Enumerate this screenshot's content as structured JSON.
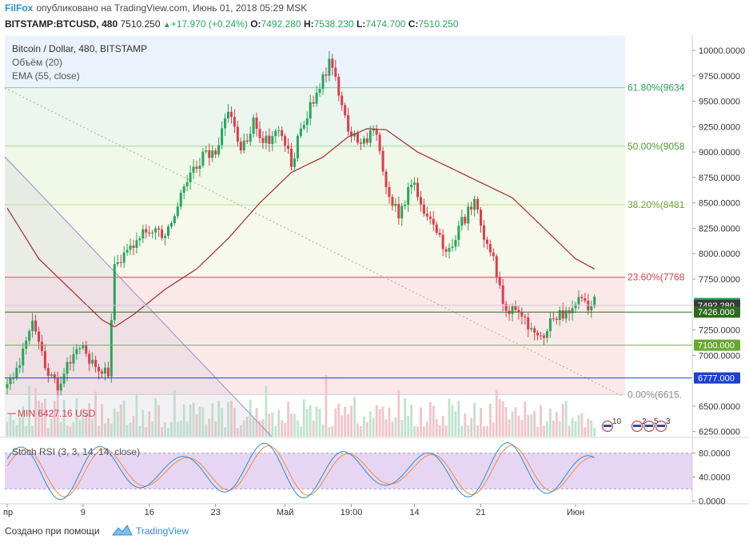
{
  "header": {
    "brand": "FilFox",
    "published": "опубликовано на TradingView.com, Июнь 01, 2018 05:29 MSK",
    "symbol": "BITSTAMP:BTCUSD, 480",
    "last": "7510.250",
    "change": "+17.970 (+0.24%)",
    "o_label": "O:",
    "o": "7492.280",
    "h_label": "H:",
    "h": "7538.230",
    "l_label": "L:",
    "l": "7474.700",
    "c_label": "C:",
    "c": "7510.250"
  },
  "legend": {
    "title": "Bitcoin / Dollar, 480, BITSTAMP",
    "volume": "Объём (20)",
    "ema": "EMA (55, close)",
    "rsi": "Stoch RSI (3, 3, 14, 14, close)"
  },
  "colors": {
    "up": "#26a65b",
    "down": "#e03b4a",
    "ema": "#a52a2a",
    "k_line": "#2b8ed8",
    "d_line": "#f08c3c",
    "fib_red": "#e03b4a",
    "fib_green": "#2ca05a",
    "blue_line": "#1f3fcf"
  },
  "chart_data": {
    "type": "candlestick",
    "ylim": [
      6200,
      10150
    ],
    "y_ticks": [
      "10000.0000",
      "9750.0000",
      "9500.0000",
      "9250.0000",
      "9000.0000",
      "8750.0000",
      "8500.0000",
      "8250.0000",
      "8000.0000",
      "7750.0000",
      "7250.0000",
      "7000.0000",
      "6500.0000",
      "6250.0000"
    ],
    "y_tick_values": [
      10000,
      9750,
      9500,
      9250,
      9000,
      8750,
      8500,
      8250,
      8000,
      7750,
      7250,
      7000,
      6500,
      6250
    ],
    "x_ticks": [
      "пр",
      "9",
      "16",
      "23",
      "Май",
      "19:00",
      "14",
      "21",
      "Июн"
    ],
    "x_tick_bars": [
      0,
      24,
      45,
      66,
      88,
      109,
      129,
      150,
      180
    ],
    "fib_levels": [
      {
        "label": "61.80%(9634",
        "value": 9634
      },
      {
        "label": "50.00%(9058",
        "value": 9058
      },
      {
        "label": "38.20%(8481",
        "value": 8481
      },
      {
        "label": "23.60%(7768",
        "value": 7768
      },
      {
        "label": "0.00%(6615.",
        "value": 6615
      }
    ],
    "price_badges": [
      {
        "label": "7510.250",
        "value": 7510.25,
        "color": "#26a65b"
      },
      {
        "label": "7492.280",
        "value": 7492.28,
        "color": "#3a3a3a"
      },
      {
        "label": "7426.000",
        "value": 7426,
        "color": "#2d6a1e"
      },
      {
        "label": "7100.000",
        "value": 7100,
        "color": "#6aa832"
      },
      {
        "label": "6777.000",
        "value": 6777,
        "color": "#1f3fcf"
      }
    ],
    "hlines": [
      {
        "value": 7426,
        "color": "#2d6a1e"
      },
      {
        "value": 7100,
        "color": "#7ab040"
      },
      {
        "value": 6777,
        "color": "#1f3fcf"
      }
    ],
    "min_label": "MIN 6427.16 USD",
    "min_value": 6427.16,
    "close_anchors": [
      [
        0,
        6680
      ],
      [
        4,
        6950
      ],
      [
        8,
        7400
      ],
      [
        12,
        6900
      ],
      [
        16,
        6700
      ],
      [
        20,
        6950
      ],
      [
        24,
        7050
      ],
      [
        28,
        6880
      ],
      [
        32,
        6850
      ],
      [
        34,
        7850
      ],
      [
        38,
        8050
      ],
      [
        42,
        8200
      ],
      [
        46,
        8250
      ],
      [
        50,
        8150
      ],
      [
        54,
        8500
      ],
      [
        58,
        8800
      ],
      [
        62,
        8950
      ],
      [
        66,
        9000
      ],
      [
        70,
        9450
      ],
      [
        74,
        9000
      ],
      [
        78,
        9300
      ],
      [
        82,
        9100
      ],
      [
        86,
        9250
      ],
      [
        90,
        8900
      ],
      [
        94,
        9300
      ],
      [
        98,
        9550
      ],
      [
        102,
        9850
      ],
      [
        104,
        9750
      ],
      [
        108,
        9200
      ],
      [
        112,
        9050
      ],
      [
        116,
        9250
      ],
      [
        120,
        8700
      ],
      [
        124,
        8350
      ],
      [
        128,
        8700
      ],
      [
        132,
        8450
      ],
      [
        136,
        8150
      ],
      [
        140,
        8050
      ],
      [
        144,
        8300
      ],
      [
        148,
        8500
      ],
      [
        150,
        8280
      ],
      [
        154,
        7950
      ],
      [
        158,
        7400
      ],
      [
        162,
        7450
      ],
      [
        166,
        7250
      ],
      [
        170,
        7150
      ],
      [
        172,
        7300
      ],
      [
        176,
        7400
      ],
      [
        180,
        7510
      ]
    ],
    "ema_anchors": [
      [
        0,
        8450
      ],
      [
        10,
        7950
      ],
      [
        20,
        7650
      ],
      [
        30,
        7350
      ],
      [
        34,
        7280
      ],
      [
        40,
        7400
      ],
      [
        50,
        7650
      ],
      [
        60,
        7850
      ],
      [
        70,
        8150
      ],
      [
        80,
        8500
      ],
      [
        90,
        8800
      ],
      [
        100,
        8950
      ],
      [
        108,
        9150
      ],
      [
        114,
        9230
      ],
      [
        120,
        9220
      ],
      [
        130,
        9000
      ],
      [
        140,
        8850
      ],
      [
        150,
        8700
      ],
      [
        160,
        8550
      ],
      [
        170,
        8250
      ],
      [
        180,
        7950
      ],
      [
        186,
        7850
      ]
    ],
    "rsi_ylim": [
      -5,
      105
    ],
    "rsi_ticks": [
      "80.0000",
      "40.0000",
      "0.0000"
    ],
    "rsi_tick_values": [
      80,
      40,
      0
    ],
    "rsi_band": [
      20,
      80
    ]
  }
}
